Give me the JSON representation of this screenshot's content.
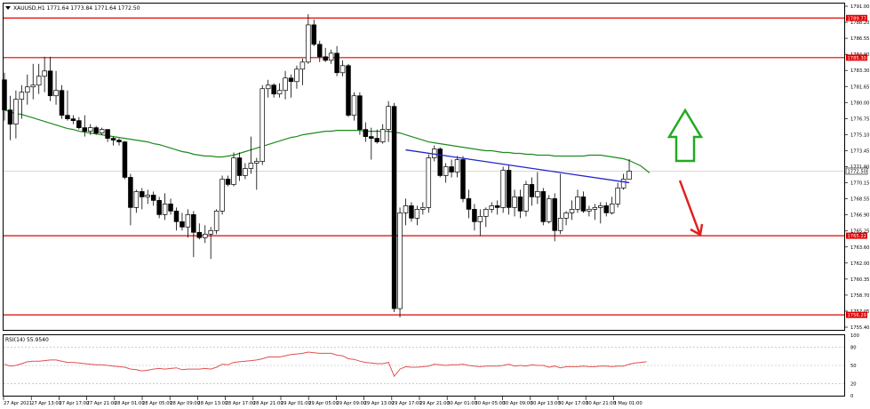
{
  "header": {
    "symbol_text": "XAUUSD,H1  1771.64 1773.84 1771.64 1772.50"
  },
  "rsi_label": "RSI(14) 55.9540",
  "colors": {
    "bull": "#ffffff",
    "bear": "#000000",
    "ma": "#1e8a1e",
    "trend": "#2222cc",
    "level": "#e00000",
    "rsi": "#e05050",
    "up_arrow": "#22aa22",
    "down_arrow": "#e02020",
    "current_price_bg": "#ffffff"
  },
  "chart_data": {
    "type": "candlestick",
    "symbol": "XAUUSD",
    "timeframe": "H1",
    "ohlc_header": {
      "open": 1771.64,
      "high": 1773.84,
      "low": 1771.64,
      "close": 1772.5
    },
    "y_ticks": [
      "1791.00",
      "1788.20",
      "1786.55",
      "1784.90",
      "1783.30",
      "1781.65",
      "1780.00",
      "1776.75",
      "1775.10",
      "1773.45",
      "1771.80",
      "1770.15",
      "1768.55",
      "1766.90",
      "1765.25",
      "1763.60",
      "1762.00",
      "1760.35",
      "1758.70",
      "1757.05",
      "1755.40"
    ],
    "y_range": [
      1754.6,
      1791.4
    ],
    "x_ticks": [
      "27 Apr 2021",
      "27 Apr 13:00",
      "27 Apr 17:00",
      "27 Apr 21:00",
      "28 Apr 01:00",
      "28 Apr 05:00",
      "28 Apr 09:00",
      "28 Apr 13:00",
      "28 Apr 17:00",
      "28 Apr 21:00",
      "29 Apr 01:00",
      "29 Apr 05:00",
      "29 Apr 09:00",
      "29 Apr 13:00",
      "29 Apr 17:00",
      "29 Apr 21:00",
      "30 Apr 01:00",
      "30 Apr 05:00",
      "30 Apr 09:00",
      "30 Apr 13:00",
      "30 Apr 17:00",
      "30 Apr 21:00",
      "3 May 01:00"
    ],
    "levels": [
      {
        "label": "1789.77",
        "value": 1789.77
      },
      {
        "label": "1785.30",
        "value": 1785.3
      },
      {
        "label": "1765.22",
        "value": 1765.22
      },
      {
        "label": "1756.29",
        "value": 1756.29
      }
    ],
    "current_price": {
      "label": "1772.50",
      "value": 1772.5
    },
    "candles": [
      {
        "o": 1782.8,
        "h": 1783.6,
        "l": 1778.2,
        "c": 1779.4
      },
      {
        "o": 1779.4,
        "h": 1781.0,
        "l": 1776.0,
        "c": 1777.8
      },
      {
        "o": 1777.8,
        "h": 1781.6,
        "l": 1776.2,
        "c": 1780.6
      },
      {
        "o": 1780.6,
        "h": 1782.2,
        "l": 1778.4,
        "c": 1781.4
      },
      {
        "o": 1781.4,
        "h": 1783.4,
        "l": 1780.0,
        "c": 1782.0
      },
      {
        "o": 1782.0,
        "h": 1784.6,
        "l": 1780.6,
        "c": 1782.2
      },
      {
        "o": 1782.2,
        "h": 1784.6,
        "l": 1781.2,
        "c": 1783.2
      },
      {
        "o": 1783.2,
        "h": 1785.4,
        "l": 1781.4,
        "c": 1783.8
      },
      {
        "o": 1783.8,
        "h": 1785.4,
        "l": 1780.4,
        "c": 1781.0
      },
      {
        "o": 1781.0,
        "h": 1783.8,
        "l": 1780.0,
        "c": 1781.6
      },
      {
        "o": 1781.6,
        "h": 1782.2,
        "l": 1778.4,
        "c": 1778.8
      },
      {
        "o": 1778.8,
        "h": 1781.6,
        "l": 1778.2,
        "c": 1778.4
      },
      {
        "o": 1778.4,
        "h": 1778.8,
        "l": 1777.8,
        "c": 1778.2
      },
      {
        "o": 1778.2,
        "h": 1778.6,
        "l": 1777.2,
        "c": 1777.4
      },
      {
        "o": 1777.4,
        "h": 1778.8,
        "l": 1776.4,
        "c": 1777.0
      },
      {
        "o": 1777.0,
        "h": 1777.8,
        "l": 1776.6,
        "c": 1777.4
      },
      {
        "o": 1777.4,
        "h": 1777.6,
        "l": 1776.6,
        "c": 1776.8
      },
      {
        "o": 1776.8,
        "h": 1777.4,
        "l": 1776.6,
        "c": 1777.2
      },
      {
        "o": 1777.2,
        "h": 1777.2,
        "l": 1775.8,
        "c": 1776.2
      },
      {
        "o": 1776.2,
        "h": 1776.4,
        "l": 1775.4,
        "c": 1776.0
      },
      {
        "o": 1776.0,
        "h": 1776.2,
        "l": 1775.4,
        "c": 1775.8
      },
      {
        "o": 1775.8,
        "h": 1775.9,
        "l": 1771.6,
        "c": 1771.8
      },
      {
        "o": 1771.8,
        "h": 1772.2,
        "l": 1766.4,
        "c": 1768.4
      },
      {
        "o": 1768.4,
        "h": 1770.4,
        "l": 1767.8,
        "c": 1770.2
      },
      {
        "o": 1770.2,
        "h": 1770.6,
        "l": 1768.2,
        "c": 1769.6
      },
      {
        "o": 1769.6,
        "h": 1770.4,
        "l": 1768.8,
        "c": 1769.8
      },
      {
        "o": 1769.8,
        "h": 1770.2,
        "l": 1768.6,
        "c": 1769.2
      },
      {
        "o": 1769.2,
        "h": 1769.6,
        "l": 1767.2,
        "c": 1767.6
      },
      {
        "o": 1767.6,
        "h": 1770.0,
        "l": 1767.0,
        "c": 1768.8
      },
      {
        "o": 1768.8,
        "h": 1769.4,
        "l": 1767.6,
        "c": 1768.0
      },
      {
        "o": 1768.0,
        "h": 1768.4,
        "l": 1765.8,
        "c": 1766.8
      },
      {
        "o": 1766.8,
        "h": 1767.8,
        "l": 1765.8,
        "c": 1766.2
      },
      {
        "o": 1766.2,
        "h": 1768.2,
        "l": 1765.0,
        "c": 1767.6
      },
      {
        "o": 1767.6,
        "h": 1768.0,
        "l": 1762.8,
        "c": 1765.6
      },
      {
        "o": 1765.6,
        "h": 1766.6,
        "l": 1764.8,
        "c": 1765.0
      },
      {
        "o": 1765.0,
        "h": 1766.4,
        "l": 1764.4,
        "c": 1765.4
      },
      {
        "o": 1765.4,
        "h": 1766.2,
        "l": 1762.6,
        "c": 1765.8
      },
      {
        "o": 1765.8,
        "h": 1768.2,
        "l": 1765.4,
        "c": 1768.0
      },
      {
        "o": 1768.0,
        "h": 1772.0,
        "l": 1767.6,
        "c": 1771.6
      },
      {
        "o": 1771.6,
        "h": 1772.0,
        "l": 1770.8,
        "c": 1771.0
      },
      {
        "o": 1771.0,
        "h": 1774.6,
        "l": 1770.8,
        "c": 1774.0
      },
      {
        "o": 1774.0,
        "h": 1774.6,
        "l": 1771.4,
        "c": 1772.0
      },
      {
        "o": 1772.0,
        "h": 1773.4,
        "l": 1771.6,
        "c": 1772.8
      },
      {
        "o": 1772.8,
        "h": 1776.4,
        "l": 1772.2,
        "c": 1773.4
      },
      {
        "o": 1773.4,
        "h": 1774.0,
        "l": 1770.4,
        "c": 1773.6
      },
      {
        "o": 1773.6,
        "h": 1782.2,
        "l": 1773.2,
        "c": 1781.8
      },
      {
        "o": 1781.8,
        "h": 1782.8,
        "l": 1780.8,
        "c": 1782.2
      },
      {
        "o": 1782.2,
        "h": 1782.4,
        "l": 1780.8,
        "c": 1781.2
      },
      {
        "o": 1781.2,
        "h": 1782.4,
        "l": 1780.8,
        "c": 1781.6
      },
      {
        "o": 1781.6,
        "h": 1783.8,
        "l": 1780.6,
        "c": 1783.0
      },
      {
        "o": 1783.0,
        "h": 1783.4,
        "l": 1780.8,
        "c": 1782.6
      },
      {
        "o": 1782.6,
        "h": 1784.4,
        "l": 1781.8,
        "c": 1784.0
      },
      {
        "o": 1784.0,
        "h": 1785.2,
        "l": 1782.2,
        "c": 1784.8
      },
      {
        "o": 1784.8,
        "h": 1790.2,
        "l": 1784.6,
        "c": 1789.0
      },
      {
        "o": 1789.0,
        "h": 1789.6,
        "l": 1786.6,
        "c": 1786.8
      },
      {
        "o": 1786.8,
        "h": 1787.2,
        "l": 1784.8,
        "c": 1785.4
      },
      {
        "o": 1785.4,
        "h": 1786.4,
        "l": 1784.8,
        "c": 1785.0
      },
      {
        "o": 1785.0,
        "h": 1786.2,
        "l": 1784.6,
        "c": 1785.8
      },
      {
        "o": 1785.8,
        "h": 1786.6,
        "l": 1783.2,
        "c": 1783.6
      },
      {
        "o": 1783.6,
        "h": 1785.0,
        "l": 1783.2,
        "c": 1784.4
      },
      {
        "o": 1784.4,
        "h": 1784.6,
        "l": 1778.6,
        "c": 1778.8
      },
      {
        "o": 1778.8,
        "h": 1781.4,
        "l": 1778.2,
        "c": 1781.0
      },
      {
        "o": 1781.0,
        "h": 1781.4,
        "l": 1776.6,
        "c": 1777.2
      },
      {
        "o": 1777.2,
        "h": 1778.0,
        "l": 1775.8,
        "c": 1776.4
      },
      {
        "o": 1776.4,
        "h": 1777.4,
        "l": 1773.8,
        "c": 1776.2
      },
      {
        "o": 1776.2,
        "h": 1777.2,
        "l": 1775.6,
        "c": 1775.8
      },
      {
        "o": 1775.8,
        "h": 1777.8,
        "l": 1775.6,
        "c": 1777.2
      },
      {
        "o": 1777.2,
        "h": 1780.4,
        "l": 1775.8,
        "c": 1779.8
      },
      {
        "o": 1779.8,
        "h": 1780.2,
        "l": 1756.6,
        "c": 1757.0
      },
      {
        "o": 1757.0,
        "h": 1768.4,
        "l": 1756.0,
        "c": 1767.8
      },
      {
        "o": 1767.8,
        "h": 1769.4,
        "l": 1766.4,
        "c": 1768.6
      },
      {
        "o": 1768.6,
        "h": 1769.0,
        "l": 1766.8,
        "c": 1767.2
      },
      {
        "o": 1767.2,
        "h": 1768.6,
        "l": 1766.4,
        "c": 1768.2
      },
      {
        "o": 1768.2,
        "h": 1769.0,
        "l": 1767.6,
        "c": 1768.4
      },
      {
        "o": 1768.4,
        "h": 1774.4,
        "l": 1767.8,
        "c": 1774.0
      },
      {
        "o": 1774.0,
        "h": 1775.4,
        "l": 1773.6,
        "c": 1775.0
      },
      {
        "o": 1775.0,
        "h": 1775.2,
        "l": 1771.8,
        "c": 1772.0
      },
      {
        "o": 1772.0,
        "h": 1773.4,
        "l": 1771.2,
        "c": 1773.0
      },
      {
        "o": 1773.0,
        "h": 1773.8,
        "l": 1771.8,
        "c": 1772.4
      },
      {
        "o": 1772.4,
        "h": 1774.2,
        "l": 1771.8,
        "c": 1773.8
      },
      {
        "o": 1773.8,
        "h": 1774.2,
        "l": 1769.0,
        "c": 1769.4
      },
      {
        "o": 1769.4,
        "h": 1770.4,
        "l": 1767.2,
        "c": 1768.2
      },
      {
        "o": 1768.2,
        "h": 1768.8,
        "l": 1765.8,
        "c": 1766.8
      },
      {
        "o": 1766.8,
        "h": 1768.2,
        "l": 1765.2,
        "c": 1767.4
      },
      {
        "o": 1767.4,
        "h": 1768.4,
        "l": 1766.2,
        "c": 1768.2
      },
      {
        "o": 1768.2,
        "h": 1769.0,
        "l": 1767.8,
        "c": 1768.6
      },
      {
        "o": 1768.6,
        "h": 1769.2,
        "l": 1767.6,
        "c": 1768.4
      },
      {
        "o": 1768.4,
        "h": 1773.0,
        "l": 1767.8,
        "c": 1772.6
      },
      {
        "o": 1772.6,
        "h": 1773.2,
        "l": 1767.6,
        "c": 1768.4
      },
      {
        "o": 1768.4,
        "h": 1770.4,
        "l": 1767.4,
        "c": 1769.6
      },
      {
        "o": 1769.6,
        "h": 1770.4,
        "l": 1767.2,
        "c": 1768.0
      },
      {
        "o": 1768.0,
        "h": 1771.4,
        "l": 1767.4,
        "c": 1771.0
      },
      {
        "o": 1771.0,
        "h": 1771.8,
        "l": 1768.6,
        "c": 1769.6
      },
      {
        "o": 1769.6,
        "h": 1772.4,
        "l": 1768.8,
        "c": 1770.2
      },
      {
        "o": 1770.2,
        "h": 1770.6,
        "l": 1766.4,
        "c": 1766.8
      },
      {
        "o": 1766.8,
        "h": 1769.8,
        "l": 1766.6,
        "c": 1769.4
      },
      {
        "o": 1769.4,
        "h": 1770.0,
        "l": 1764.6,
        "c": 1765.8
      },
      {
        "o": 1765.8,
        "h": 1772.2,
        "l": 1765.4,
        "c": 1767.2
      },
      {
        "o": 1767.2,
        "h": 1768.0,
        "l": 1766.4,
        "c": 1767.8
      },
      {
        "o": 1767.8,
        "h": 1769.2,
        "l": 1767.0,
        "c": 1768.2
      },
      {
        "o": 1768.2,
        "h": 1770.4,
        "l": 1767.8,
        "c": 1769.6
      },
      {
        "o": 1769.6,
        "h": 1770.2,
        "l": 1767.8,
        "c": 1768.0
      },
      {
        "o": 1768.0,
        "h": 1768.6,
        "l": 1767.4,
        "c": 1768.2
      },
      {
        "o": 1768.2,
        "h": 1768.8,
        "l": 1767.0,
        "c": 1768.4
      },
      {
        "o": 1768.4,
        "h": 1769.0,
        "l": 1766.6,
        "c": 1768.6
      },
      {
        "o": 1768.6,
        "h": 1769.0,
        "l": 1767.4,
        "c": 1767.8
      },
      {
        "o": 1767.8,
        "h": 1769.6,
        "l": 1767.6,
        "c": 1768.8
      },
      {
        "o": 1768.8,
        "h": 1771.2,
        "l": 1768.4,
        "c": 1770.6
      },
      {
        "o": 1770.6,
        "h": 1772.2,
        "l": 1770.4,
        "c": 1771.6
      },
      {
        "o": 1771.6,
        "h": 1773.84,
        "l": 1771.6,
        "c": 1772.5
      }
    ],
    "ma": [
      1779.4,
      1779.2,
      1779.0,
      1778.9,
      1778.7,
      1778.5,
      1778.3,
      1778.1,
      1777.9,
      1777.7,
      1777.5,
      1777.3,
      1777.2,
      1777.0,
      1776.9,
      1776.8,
      1776.7,
      1776.6,
      1776.5,
      1776.4,
      1776.3,
      1776.2,
      1776.1,
      1776.0,
      1775.9,
      1775.8,
      1775.6,
      1775.5,
      1775.3,
      1775.1,
      1774.9,
      1774.7,
      1774.6,
      1774.4,
      1774.3,
      1774.2,
      1774.2,
      1774.1,
      1774.1,
      1774.2,
      1774.3,
      1774.5,
      1774.7,
      1774.9,
      1775.1,
      1775.3,
      1775.5,
      1775.7,
      1775.9,
      1776.1,
      1776.3,
      1776.4,
      1776.6,
      1776.7,
      1776.8,
      1776.9,
      1777.0,
      1777.0,
      1777.1,
      1777.1,
      1777.1,
      1777.1,
      1777.1,
      1777.0,
      1777.0,
      1777.0,
      1777.0,
      1777.0,
      1776.9,
      1776.8,
      1776.6,
      1776.4,
      1776.2,
      1776.0,
      1775.8,
      1775.7,
      1775.6,
      1775.5,
      1775.4,
      1775.3,
      1775.2,
      1775.1,
      1775.0,
      1774.9,
      1774.8,
      1774.8,
      1774.7,
      1774.6,
      1774.6,
      1774.5,
      1774.5,
      1774.4,
      1774.4,
      1774.3,
      1774.3,
      1774.3,
      1774.2,
      1774.2,
      1774.2,
      1774.2,
      1774.2,
      1774.2,
      1774.3,
      1774.3,
      1774.3,
      1774.2,
      1774.1,
      1774.0,
      1773.9,
      1773.7,
      1773.4,
      1773.1
    ],
    "trendline": [
      {
        "i": 70,
        "p": 1774.9
      },
      {
        "i": 109,
        "p": 1771.2
      }
    ],
    "rsi": {
      "name": "RSI(14)",
      "value": 55.954,
      "range": [
        0,
        100
      ],
      "ticks": [
        "100",
        "80",
        "50",
        "20",
        "0"
      ],
      "levels": [
        80,
        50,
        20
      ],
      "values": [
        52,
        49,
        50,
        53,
        56,
        57,
        57,
        58,
        59,
        59,
        57,
        55,
        55,
        54,
        53,
        52,
        51,
        51,
        50,
        49,
        48,
        47,
        44,
        43,
        41,
        42,
        44,
        45,
        44,
        45,
        46,
        43,
        44,
        44,
        44,
        45,
        44,
        47,
        52,
        51,
        55,
        56,
        57,
        58,
        59,
        61,
        64,
        64,
        64,
        66,
        68,
        69,
        70,
        72,
        71,
        70,
        70,
        70,
        67,
        66,
        61,
        60,
        57,
        55,
        54,
        53,
        53,
        55,
        32,
        44,
        48,
        47,
        47,
        48,
        49,
        52,
        51,
        50,
        51,
        51,
        52,
        50,
        49,
        48,
        49,
        49,
        49,
        50,
        52,
        49,
        50,
        49,
        51,
        50,
        50,
        47,
        49,
        46,
        48,
        48,
        48,
        49,
        48,
        48,
        49,
        49,
        48,
        49,
        49,
        52,
        54,
        55,
        56
      ]
    }
  }
}
